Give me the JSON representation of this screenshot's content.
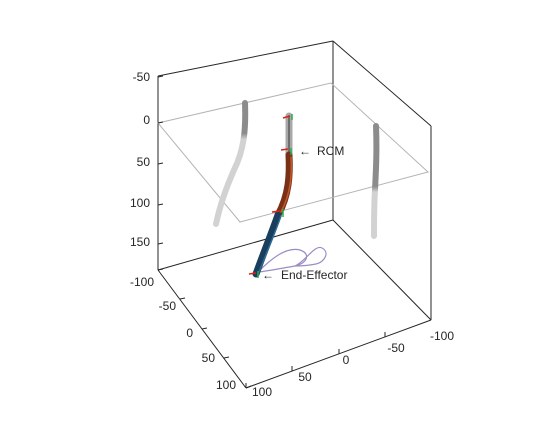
{
  "figure": {
    "annotations": {
      "rcm": "RCM",
      "end_effector": "End-Effector",
      "arrow_glyph": "←"
    },
    "axes": {
      "z_ticks": [
        "-50",
        "0",
        "50",
        "100",
        "150"
      ],
      "y_ticks": [
        "-100",
        "-50",
        "0",
        "50",
        "100"
      ],
      "x_ticks": [
        "100",
        "50",
        "0",
        "-50",
        "-100"
      ]
    },
    "colors": {
      "box": "#262626",
      "plane": "#b4b4b4",
      "shadow_light": "#d2d2d2",
      "shadow_dark": "#8c8c8c",
      "cannula": "#a8a8a8",
      "distal_segment": "#7a3016",
      "proximal_segment": "#1a3f5c",
      "trajectory": "#9b8cc4",
      "marker_red": "#e0201c",
      "marker_green": "#22b14c"
    }
  }
}
